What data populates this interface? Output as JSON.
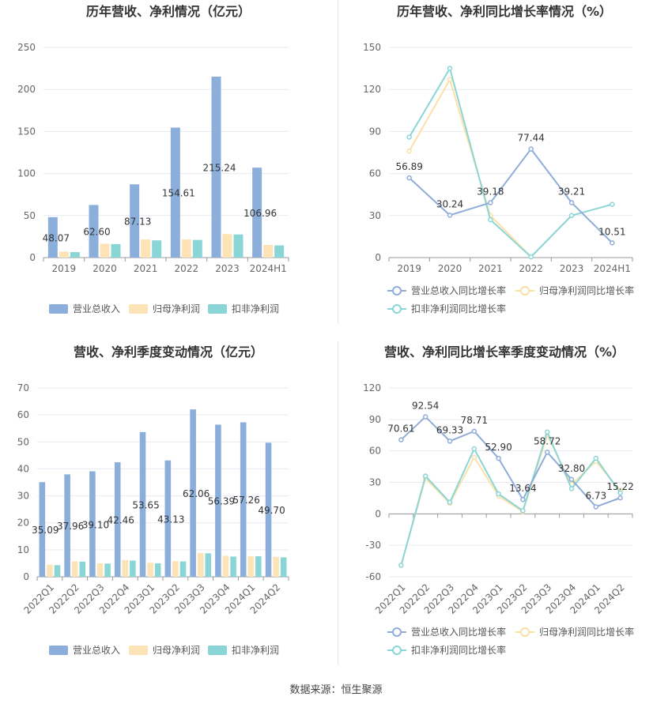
{
  "source": "数据来源：恒生聚源",
  "colors": {
    "revenue": "#8caedb",
    "net_profit": "#fde3b5",
    "deducted_profit": "#8ad6d6",
    "revenue_line": "#8fadd8",
    "net_profit_line": "#fddfa8",
    "deducted_line": "#8ad6d6"
  },
  "chart_data": [
    {
      "type": "bar",
      "title": "历年营收、净利情况（亿元）",
      "categories": [
        "2019",
        "2020",
        "2021",
        "2022",
        "2023",
        "2024H1"
      ],
      "ylim": [
        0,
        250
      ],
      "yticks": [
        0,
        50,
        100,
        150,
        200,
        250
      ],
      "series": [
        {
          "name": "营业总收入",
          "values": [
            48.07,
            62.6,
            87.13,
            154.61,
            215.24,
            106.96
          ]
        },
        {
          "name": "归母净利润",
          "values": [
            7,
            16.5,
            21.5,
            21.5,
            28,
            15
          ]
        },
        {
          "name": "扣非净利润",
          "values": [
            6.5,
            16,
            20.5,
            21,
            27.5,
            14.5
          ]
        }
      ],
      "data_labels": [
        "48.07",
        "62.60",
        "87.13",
        "154.61",
        "215.24",
        "106.96"
      ],
      "legend": "bottom"
    },
    {
      "type": "line",
      "title": "历年营收、净利同比增长率情况（%）",
      "categories": [
        "2019",
        "2020",
        "2021",
        "2022",
        "2023",
        "2024H1"
      ],
      "ylim": [
        0,
        150
      ],
      "yticks": [
        0,
        30,
        60,
        90,
        120,
        150
      ],
      "series": [
        {
          "name": "营业总收入同比增长率",
          "values": [
            56.89,
            30.24,
            39.18,
            77.44,
            39.21,
            10.51
          ]
        },
        {
          "name": "归母净利润同比增长率",
          "values": [
            76,
            127,
            30,
            0.5,
            30,
            null
          ]
        },
        {
          "name": "扣非净利润同比增长率",
          "values": [
            86,
            135,
            27,
            0.5,
            30,
            38
          ]
        }
      ],
      "data_labels": [
        "56.89",
        "30.24",
        "39.18",
        "77.44",
        "39.21",
        "10.51"
      ],
      "legend": "bottom"
    },
    {
      "type": "bar",
      "title": "营收、净利季度变动情况（亿元）",
      "categories": [
        "2022Q1",
        "2022Q2",
        "2022Q3",
        "2022Q4",
        "2023Q1",
        "2023Q2",
        "2023Q3",
        "2023Q4",
        "2024Q1",
        "2024Q2"
      ],
      "ylim": [
        0,
        70
      ],
      "yticks": [
        0,
        10,
        20,
        30,
        40,
        50,
        60,
        70
      ],
      "series": [
        {
          "name": "营业总收入",
          "values": [
            35.09,
            37.96,
            39.1,
            42.46,
            53.65,
            43.13,
            62.06,
            56.39,
            57.26,
            49.7
          ]
        },
        {
          "name": "归母净利润",
          "values": [
            4.5,
            5.7,
            5.0,
            6.2,
            5.2,
            5.8,
            8.8,
            7.8,
            7.6,
            7.4
          ]
        },
        {
          "name": "扣非净利润",
          "values": [
            4.3,
            5.6,
            4.9,
            6.0,
            5.0,
            5.7,
            8.7,
            7.5,
            7.6,
            7.2
          ]
        }
      ],
      "data_labels": [
        "35.09",
        "37.96",
        "39.10",
        "42.46",
        "53.65",
        "43.13",
        "62.06",
        "56.39",
        "57.26",
        "49.70"
      ],
      "legend": "bottom"
    },
    {
      "type": "line",
      "title": "营收、净利同比增长率季度变动情况（%）",
      "categories": [
        "2022Q1",
        "2022Q2",
        "2022Q3",
        "2022Q4",
        "2023Q1",
        "2023Q2",
        "2023Q3",
        "2023Q4",
        "2024Q1",
        "2024Q2"
      ],
      "ylim": [
        -60,
        120
      ],
      "yticks": [
        -60,
        -30,
        0,
        30,
        60,
        90,
        120
      ],
      "series": [
        {
          "name": "营业总收入同比增长率",
          "values": [
            70.61,
            92.54,
            69.33,
            78.71,
            52.9,
            13.64,
            58.72,
            32.8,
            6.73,
            15.22
          ]
        },
        {
          "name": "归母净利润同比增长率",
          "values": [
            -49,
            34,
            10,
            54,
            17,
            2,
            75,
            28,
            50,
            22
          ]
        },
        {
          "name": "扣非净利润同比增长率",
          "values": [
            -49,
            36,
            11,
            62,
            19,
            3,
            78,
            24,
            53,
            20
          ]
        }
      ],
      "data_labels": [
        "70.61",
        "92.54",
        "69.33",
        "78.71",
        "52.90",
        "13.64",
        "58.72",
        "32.80",
        "6.73",
        "15.22"
      ],
      "legend": "bottom"
    }
  ]
}
